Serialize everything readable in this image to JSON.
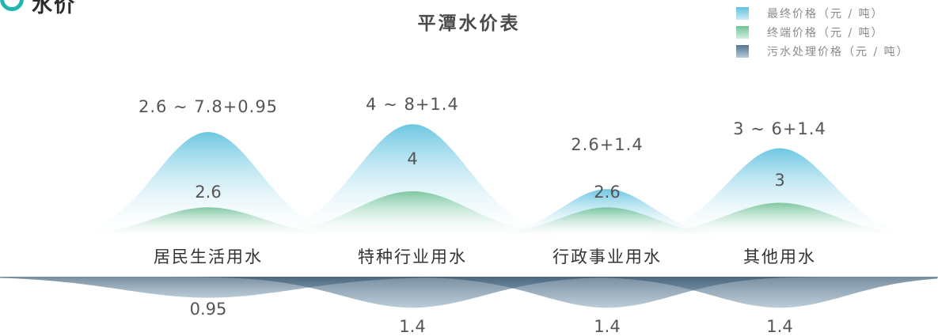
{
  "logo": {
    "text": "水价"
  },
  "title": "平潭水价表",
  "legend": [
    {
      "label": "最终价格（元 / 吨）",
      "color": "#5fc3e0"
    },
    {
      "label": "终端价格（元 / 吨）",
      "color": "#6cc393"
    },
    {
      "label": "污水处理价格（元 / 吨）",
      "color": "#4f7594"
    }
  ],
  "chart_data": {
    "type": "area",
    "title": "平潭水价表",
    "categories": [
      "居民生活用水",
      "特种行业用水",
      "行政事业用水",
      "其他用水"
    ],
    "series": [
      {
        "name": "最终价格（元 / 吨）",
        "values": [
          8.75,
          9.4,
          4.0,
          7.4
        ],
        "labels": [
          "2.6 ~ 7.8+0.95",
          "4 ~ 8+1.4",
          "2.6+1.4",
          "3 ~ 6+1.4"
        ]
      },
      {
        "name": "终端价格（元 / 吨）",
        "values": [
          2.6,
          4,
          2.6,
          3
        ],
        "labels": [
          "2.6",
          "4",
          "2.6",
          "3"
        ]
      },
      {
        "name": "污水处理价格（元 / 吨）",
        "values": [
          0.95,
          1.4,
          1.4,
          1.4
        ],
        "labels": [
          "0.95",
          "1.4",
          "1.4",
          "1.4"
        ]
      }
    ],
    "colors": {
      "final": "#5fc3e0",
      "terminal": "#6cc393",
      "sewage": "#4f7594"
    },
    "legend_position": "top-right",
    "grid": false
  }
}
